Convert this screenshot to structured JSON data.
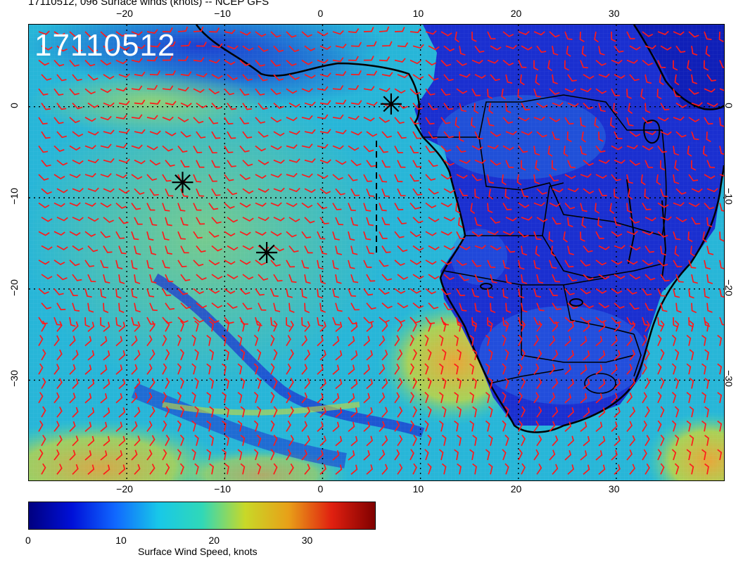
{
  "title": "17110512, 096 Surface winds (knots) -- NCEP GFS",
  "stamp": "17110512",
  "map": {
    "lon_ticks": [
      "−20",
      "−10",
      "0",
      "10",
      "20",
      "30"
    ],
    "lat_ticks": [
      "0",
      "−10",
      "−20",
      "−30"
    ],
    "lon_range": [
      -30,
      41
    ],
    "lat_range": [
      -41,
      9
    ],
    "colors": {
      "calm": "#1a2fd0",
      "moderate": "#27b6d8",
      "fresh": "#3fd6b0",
      "strong": "#c9d838",
      "gale": "#e08a2c",
      "barb": "#ff1a1a",
      "coast": "#000000"
    },
    "markers": [
      {
        "lon": -14.3,
        "lat": -8.3,
        "icon": "asterisk-marker"
      },
      {
        "lon": -5.7,
        "lat": -16.0,
        "icon": "asterisk-marker"
      },
      {
        "lon": 7.0,
        "lat": 0.3,
        "icon": "asterisk-marker"
      }
    ]
  },
  "colorbar": {
    "title": "Surface Wind Speed, knots",
    "ticks": [
      "0",
      "10",
      "20",
      "30"
    ],
    "stops": [
      "#000080",
      "#0010d8",
      "#1068ff",
      "#18c8e8",
      "#30d8b8",
      "#c8d828",
      "#e8a018",
      "#e02010",
      "#800000"
    ]
  }
}
